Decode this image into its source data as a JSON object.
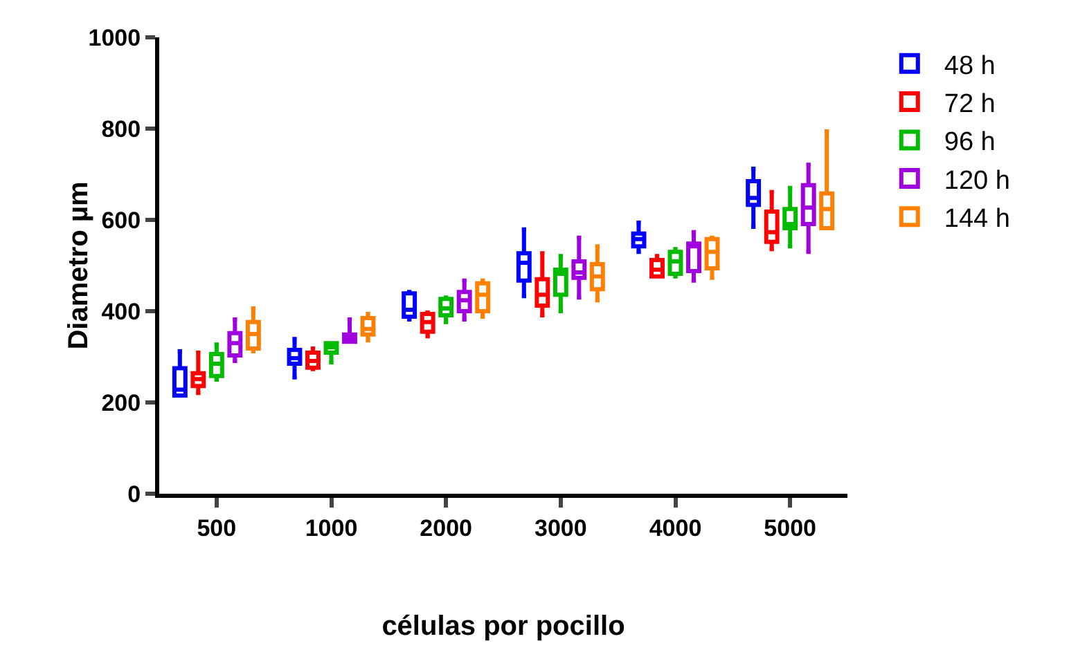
{
  "chart_data": {
    "type": "box",
    "xlabel": "células por pocillo",
    "ylabel": "Diametro µm",
    "categories": [
      "500",
      "1000",
      "2000",
      "3000",
      "4000",
      "5000"
    ],
    "ylim": [
      0,
      1000
    ],
    "yticks": [
      0,
      200,
      400,
      600,
      800,
      1000
    ],
    "grid": false,
    "legend": "right",
    "series": [
      {
        "name": "48 h",
        "color": "#0000ff",
        "boxes": [
          {
            "low": 215,
            "q1": 215,
            "median": 228,
            "q3": 275,
            "high": 312
          },
          {
            "low": 255,
            "q1": 285,
            "median": 297,
            "q3": 315,
            "high": 339
          },
          {
            "low": 382,
            "q1": 388,
            "median": 403,
            "q3": 439,
            "high": 442
          },
          {
            "low": 433,
            "q1": 467,
            "median": 506,
            "q3": 527,
            "high": 579
          },
          {
            "low": 530,
            "q1": 542,
            "median": 558,
            "q3": 570,
            "high": 594
          },
          {
            "low": 585,
            "q1": 633,
            "median": 648,
            "q3": 685,
            "high": 712
          }
        ]
      },
      {
        "name": "72 h",
        "color": "#ff0000",
        "boxes": [
          {
            "low": 221,
            "q1": 236,
            "median": 251,
            "q3": 264,
            "high": 309
          },
          {
            "low": 273,
            "q1": 276,
            "median": 291,
            "q3": 309,
            "high": 318
          },
          {
            "low": 345,
            "q1": 355,
            "median": 376,
            "q3": 394,
            "high": 397
          },
          {
            "low": 391,
            "q1": 412,
            "median": 436,
            "q3": 470,
            "high": 527
          },
          {
            "low": 476,
            "q1": 476,
            "median": 491,
            "q3": 512,
            "high": 521
          },
          {
            "low": 536,
            "q1": 552,
            "median": 573,
            "q3": 618,
            "high": 661
          }
        ]
      },
      {
        "name": "96 h",
        "color": "#00bb00",
        "boxes": [
          {
            "low": 250,
            "q1": 258,
            "median": 285,
            "q3": 306,
            "high": 327
          },
          {
            "low": 288,
            "q1": 309,
            "median": 321,
            "q3": 330,
            "high": 330
          },
          {
            "low": 376,
            "q1": 391,
            "median": 406,
            "q3": 427,
            "high": 430
          },
          {
            "low": 400,
            "q1": 436,
            "median": 482,
            "q3": 491,
            "high": 521
          },
          {
            "low": 476,
            "q1": 482,
            "median": 509,
            "q3": 530,
            "high": 536
          },
          {
            "low": 542,
            "q1": 582,
            "median": 591,
            "q3": 624,
            "high": 670
          }
        ]
      },
      {
        "name": "120 h",
        "color": "#a000e0",
        "boxes": [
          {
            "low": 291,
            "q1": 303,
            "median": 330,
            "q3": 352,
            "high": 382
          },
          {
            "low": 333,
            "q1": 333,
            "median": 342,
            "q3": 349,
            "high": 382
          },
          {
            "low": 382,
            "q1": 400,
            "median": 424,
            "q3": 442,
            "high": 467
          },
          {
            "low": 430,
            "q1": 473,
            "median": 485,
            "q3": 509,
            "high": 561
          },
          {
            "low": 467,
            "q1": 488,
            "median": 542,
            "q3": 548,
            "high": 573
          },
          {
            "low": 530,
            "q1": 591,
            "median": 627,
            "q3": 676,
            "high": 721
          }
        ]
      },
      {
        "name": "144 h",
        "color": "#ff8000",
        "boxes": [
          {
            "low": 312,
            "q1": 318,
            "median": 350,
            "q3": 376,
            "high": 406
          },
          {
            "low": 336,
            "q1": 349,
            "median": 361,
            "q3": 385,
            "high": 394
          },
          {
            "low": 388,
            "q1": 400,
            "median": 436,
            "q3": 461,
            "high": 467
          },
          {
            "low": 424,
            "q1": 448,
            "median": 476,
            "q3": 503,
            "high": 542
          },
          {
            "low": 473,
            "q1": 494,
            "median": 530,
            "q3": 558,
            "high": 561
          },
          {
            "low": 582,
            "q1": 582,
            "median": 624,
            "q3": 658,
            "high": 794
          }
        ]
      }
    ]
  }
}
